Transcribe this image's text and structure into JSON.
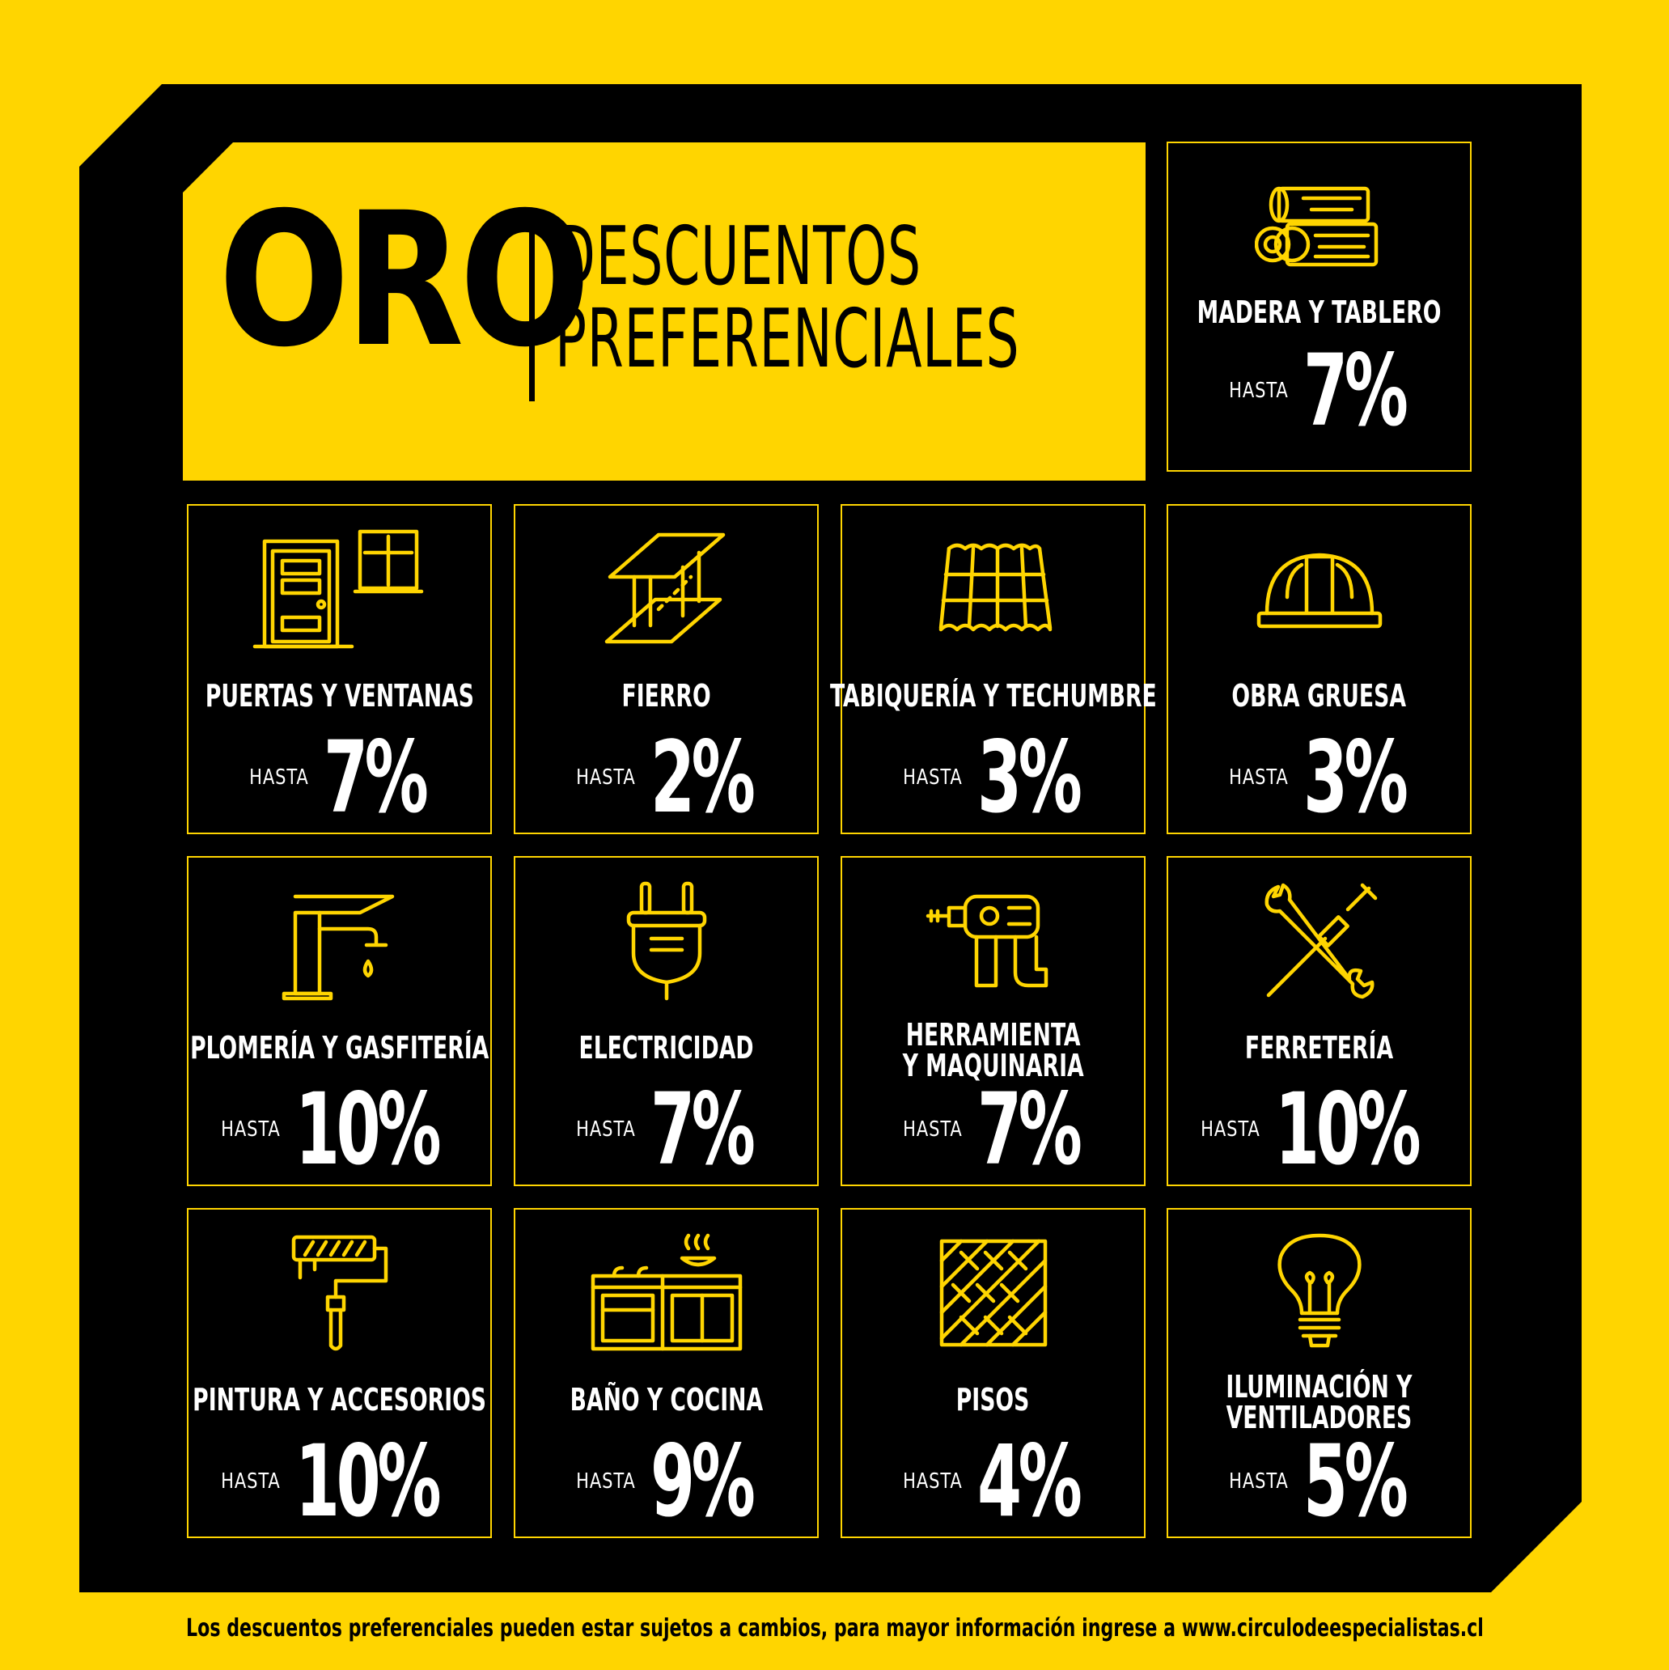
{
  "header": {
    "brand": "ORO",
    "subtitle_line1": "DESCUENTOS",
    "subtitle_line2": "PREFERENCIALES"
  },
  "colors": {
    "accent": "#FFD500",
    "panel": "#000000",
    "text": "#FFFFFF"
  },
  "categories": [
    {
      "name": "MADERA Y TABLERO",
      "prefix": "HASTA",
      "discount": "7%",
      "icon": "wood-logs-icon"
    },
    {
      "name": "PUERTAS Y VENTANAS",
      "prefix": "HASTA",
      "discount": "7%",
      "icon": "door-window-icon"
    },
    {
      "name": "FIERRO",
      "prefix": "HASTA",
      "discount": "2%",
      "icon": "steel-beam-icon"
    },
    {
      "name": "TABIQUERÍA Y TECHUMBRE",
      "prefix": "HASTA",
      "discount": "3%",
      "icon": "roof-tiles-icon"
    },
    {
      "name": "OBRA GRUESA",
      "prefix": "HASTA",
      "discount": "3%",
      "icon": "hard-hat-icon"
    },
    {
      "name": "PLOMERÍA Y GASFITERÍA",
      "prefix": "HASTA",
      "discount": "10%",
      "icon": "faucet-icon"
    },
    {
      "name": "ELECTRICIDAD",
      "prefix": "HASTA",
      "discount": "7%",
      "icon": "plug-icon"
    },
    {
      "name": "HERRAMIENTA\nY MAQUINARIA",
      "prefix": "HASTA",
      "discount": "7%",
      "icon": "drill-icon"
    },
    {
      "name": "FERRETERÍA",
      "prefix": "HASTA",
      "discount": "10%",
      "icon": "wrench-screwdriver-icon"
    },
    {
      "name": "PINTURA Y ACCESORIOS",
      "prefix": "HASTA",
      "discount": "10%",
      "icon": "paint-roller-icon"
    },
    {
      "name": "BAÑO Y COCINA",
      "prefix": "HASTA",
      "discount": "9%",
      "icon": "kitchen-icon"
    },
    {
      "name": "PISOS",
      "prefix": "HASTA",
      "discount": "4%",
      "icon": "parquet-floor-icon"
    },
    {
      "name": "ILUMINACIÓN Y\nVENTILADORES",
      "prefix": "HASTA",
      "discount": "5%",
      "icon": "light-bulb-icon"
    }
  ],
  "footer": {
    "note": "Los descuentos preferenciales pueden estar sujetos a cambios, para mayor información ingrese a www.circulodeespecialistas.cl"
  }
}
